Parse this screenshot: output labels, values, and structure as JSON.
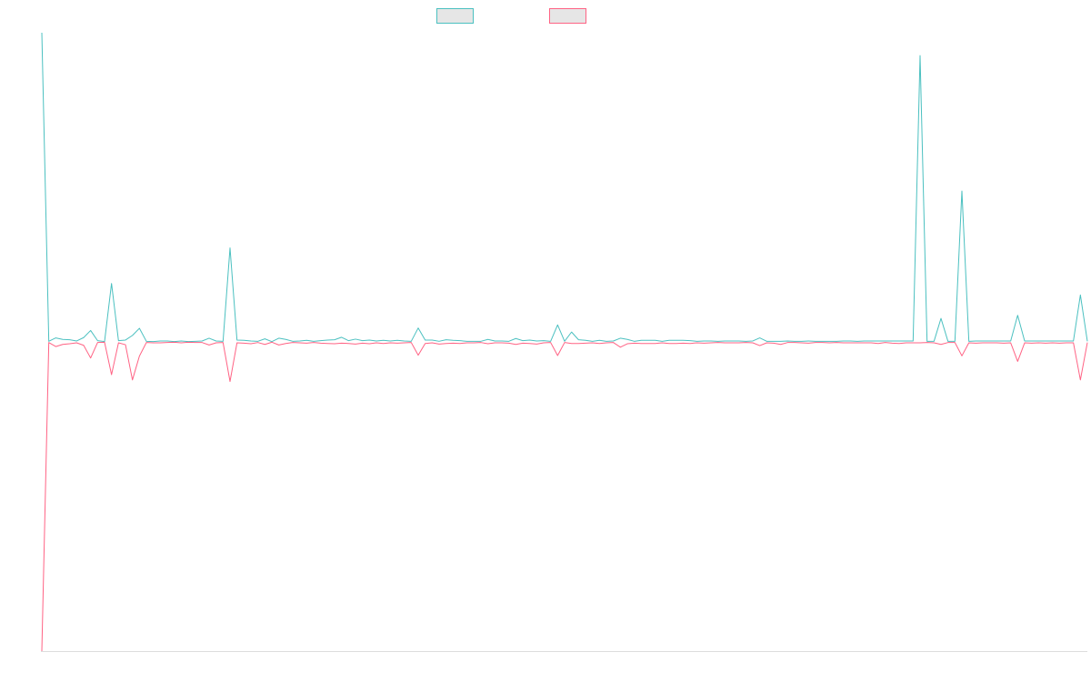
{
  "chart_data": {
    "type": "line",
    "title": "",
    "xlabel": "",
    "ylabel": "",
    "grid": false,
    "legend_placement": "top-center",
    "x_count": 151,
    "ylim": [
      -100,
      100
    ],
    "series": [
      {
        "name": "",
        "color": "#4bc0c0",
        "legend_fill": "#e6e6e6",
        "values": [
          100,
          0.2,
          1.3,
          0.8,
          0.7,
          0.3,
          1.4,
          3.7,
          0.4,
          0.1,
          18.9,
          0.4,
          0.6,
          2.1,
          4.4,
          0.2,
          0.1,
          0.3,
          0.3,
          0.1,
          0.3,
          0.1,
          0.2,
          0.3,
          1.2,
          0.3,
          0.2,
          30.4,
          0.6,
          0.5,
          0.3,
          0.2,
          1.0,
          0.1,
          1.2,
          0.8,
          0.2,
          0.3,
          0.5,
          0.2,
          0.4,
          0.6,
          0.7,
          1.5,
          0.4,
          0.9,
          0.4,
          0.6,
          0.3,
          0.5,
          0.3,
          0.5,
          0.3,
          0.2,
          4.5,
          0.6,
          0.6,
          0.2,
          0.7,
          0.5,
          0.4,
          0.2,
          0.2,
          0.2,
          0.8,
          0.3,
          0.3,
          0.2,
          1.1,
          0.4,
          0.6,
          0.3,
          0.4,
          0.2,
          5.5,
          0.2,
          3.2,
          0.7,
          0.5,
          0.2,
          0.5,
          0.2,
          0.3,
          1.2,
          0.8,
          0.2,
          0.5,
          0.5,
          0.5,
          0.2,
          0.5,
          0.5,
          0.5,
          0.4,
          0.2,
          0.3,
          0.3,
          0.2,
          0.3,
          0.3,
          0.3,
          0.2,
          0.3,
          1.3,
          0.2,
          0.2,
          0.2,
          0.3,
          0.2,
          0.2,
          0.3,
          0.2,
          0.2,
          0.2,
          0.2,
          0.3,
          0.3,
          0.2,
          0.3,
          0.3,
          0.3,
          0.3,
          0.3,
          0.3,
          0.3,
          0.3,
          92.6,
          0.2,
          0.2,
          7.6,
          0.2,
          0.2,
          48.8,
          0.2,
          0.3,
          0.3,
          0.3,
          0.3,
          0.3,
          0.3,
          8.6,
          0.3,
          0.3,
          0.3,
          0.3,
          0.3,
          0.3,
          0.3,
          0.3,
          15.2,
          0.2
        ]
      },
      {
        "name": "",
        "color": "#ff6384",
        "legend_fill": "#e6e6e6",
        "values": [
          -100,
          -0.2,
          -1.5,
          -0.8,
          -0.6,
          -0.3,
          -1.1,
          -5.2,
          -0.2,
          -0.1,
          -10.6,
          -0.3,
          -0.9,
          -12.3,
          -4.6,
          -0.2,
          -0.3,
          -0.3,
          -0.2,
          -0.1,
          -0.3,
          -0.1,
          -0.2,
          -0.2,
          -1.0,
          -0.3,
          -0.2,
          -12.8,
          -0.3,
          -0.4,
          -0.6,
          -0.2,
          -0.8,
          -0.1,
          -1.0,
          -0.5,
          -0.2,
          -0.3,
          -0.4,
          -0.2,
          -0.4,
          -0.5,
          -0.6,
          -0.4,
          -0.5,
          -0.7,
          -0.4,
          -0.6,
          -0.3,
          -0.5,
          -0.3,
          -0.4,
          -0.3,
          -0.2,
          -4.3,
          -0.5,
          -0.3,
          -0.7,
          -0.5,
          -0.4,
          -0.5,
          -0.3,
          -0.3,
          -0.2,
          -0.6,
          -0.3,
          -0.3,
          -0.4,
          -0.8,
          -0.4,
          -0.5,
          -0.7,
          -0.3,
          -0.2,
          -4.4,
          -0.2,
          -0.5,
          -0.5,
          -0.4,
          -0.3,
          -0.5,
          -0.3,
          -0.2,
          -1.7,
          -0.6,
          -0.4,
          -0.5,
          -0.5,
          -0.5,
          -0.3,
          -0.5,
          -0.5,
          -0.4,
          -0.5,
          -0.3,
          -0.4,
          -0.3,
          -0.2,
          -0.3,
          -0.3,
          -0.3,
          -0.2,
          -0.3,
          -1.2,
          -0.3,
          -0.4,
          -0.8,
          -0.2,
          -0.2,
          -0.3,
          -0.4,
          -0.2,
          -0.2,
          -0.3,
          -0.2,
          -0.3,
          -0.3,
          -0.3,
          -0.3,
          -0.3,
          -0.5,
          -0.2,
          -0.4,
          -0.5,
          -0.3,
          -0.3,
          -0.3,
          -0.2,
          -0.3,
          -0.8,
          -0.2,
          -0.2,
          -4.5,
          -0.3,
          -0.4,
          -0.3,
          -0.3,
          -0.3,
          -0.4,
          -0.3,
          -6.3,
          -0.3,
          -0.4,
          -0.3,
          -0.4,
          -0.3,
          -0.4,
          -0.3,
          -0.3,
          -12.3,
          -0.2
        ]
      }
    ]
  }
}
